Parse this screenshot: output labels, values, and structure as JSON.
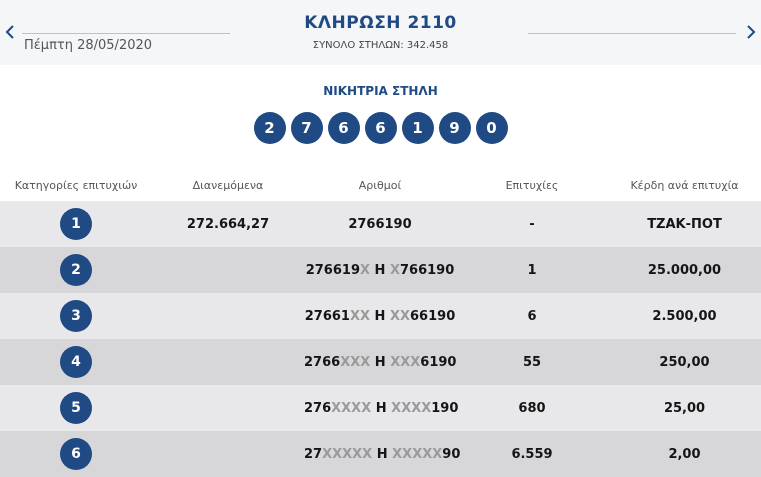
{
  "header": {
    "date": "Πέμπτη 28/05/2020",
    "title": "ΚΛΗΡΩΣΗ 2110",
    "total_columns": "ΣΥΝΟΛΟ ΣΤΗΛΩΝ: 342.458"
  },
  "winning": {
    "label": "ΝΙΚΗΤΡΙΑ ΣΤΗΛΗ",
    "digits": [
      "2",
      "7",
      "6",
      "6",
      "1",
      "9",
      "0"
    ]
  },
  "table": {
    "headers": [
      "Κατηγορίες επιτυχιών",
      "Διανεμόμενα",
      "Αριθμοί",
      "Επιτυχίες",
      "Κέρδη ανά επιτυχία"
    ],
    "rows": [
      {
        "category": "1",
        "distributed": "272.664,27",
        "numbers": [
          {
            "t": "2766190",
            "x": false
          }
        ],
        "winners": "-",
        "prize": "ΤΖΑΚ-ΠΟΤ"
      },
      {
        "category": "2",
        "distributed": "",
        "numbers": [
          {
            "t": "276619",
            "x": false
          },
          {
            "t": "X",
            "x": true
          },
          {
            "t": " Η ",
            "x": false
          },
          {
            "t": "X",
            "x": true
          },
          {
            "t": "766190",
            "x": false
          }
        ],
        "winners": "1",
        "prize": "25.000,00"
      },
      {
        "category": "3",
        "distributed": "",
        "numbers": [
          {
            "t": "27661",
            "x": false
          },
          {
            "t": "XX",
            "x": true
          },
          {
            "t": " Η ",
            "x": false
          },
          {
            "t": "XX",
            "x": true
          },
          {
            "t": "66190",
            "x": false
          }
        ],
        "winners": "6",
        "prize": "2.500,00"
      },
      {
        "category": "4",
        "distributed": "",
        "numbers": [
          {
            "t": "2766",
            "x": false
          },
          {
            "t": "XXX",
            "x": true
          },
          {
            "t": " Η ",
            "x": false
          },
          {
            "t": "XXX",
            "x": true
          },
          {
            "t": "6190",
            "x": false
          }
        ],
        "winners": "55",
        "prize": "250,00"
      },
      {
        "category": "5",
        "distributed": "",
        "numbers": [
          {
            "t": "276",
            "x": false
          },
          {
            "t": "XXXX",
            "x": true
          },
          {
            "t": " Η ",
            "x": false
          },
          {
            "t": "XXXX",
            "x": true
          },
          {
            "t": "190",
            "x": false
          }
        ],
        "winners": "680",
        "prize": "25,00"
      },
      {
        "category": "6",
        "distributed": "",
        "numbers": [
          {
            "t": "27",
            "x": false
          },
          {
            "t": "XXXXX",
            "x": true
          },
          {
            "t": " Η ",
            "x": false
          },
          {
            "t": "XXXXX",
            "x": true
          },
          {
            "t": "90",
            "x": false
          }
        ],
        "winners": "6.559",
        "prize": "2,00"
      }
    ]
  },
  "colors": {
    "accent": "#1f4a84",
    "row_light": "#e8e8ea",
    "row_dark": "#d7d7d9",
    "masked_digit": "#9a9a9a"
  },
  "icons": {
    "prev": "chevron-left-icon",
    "next": "chevron-right-icon"
  }
}
